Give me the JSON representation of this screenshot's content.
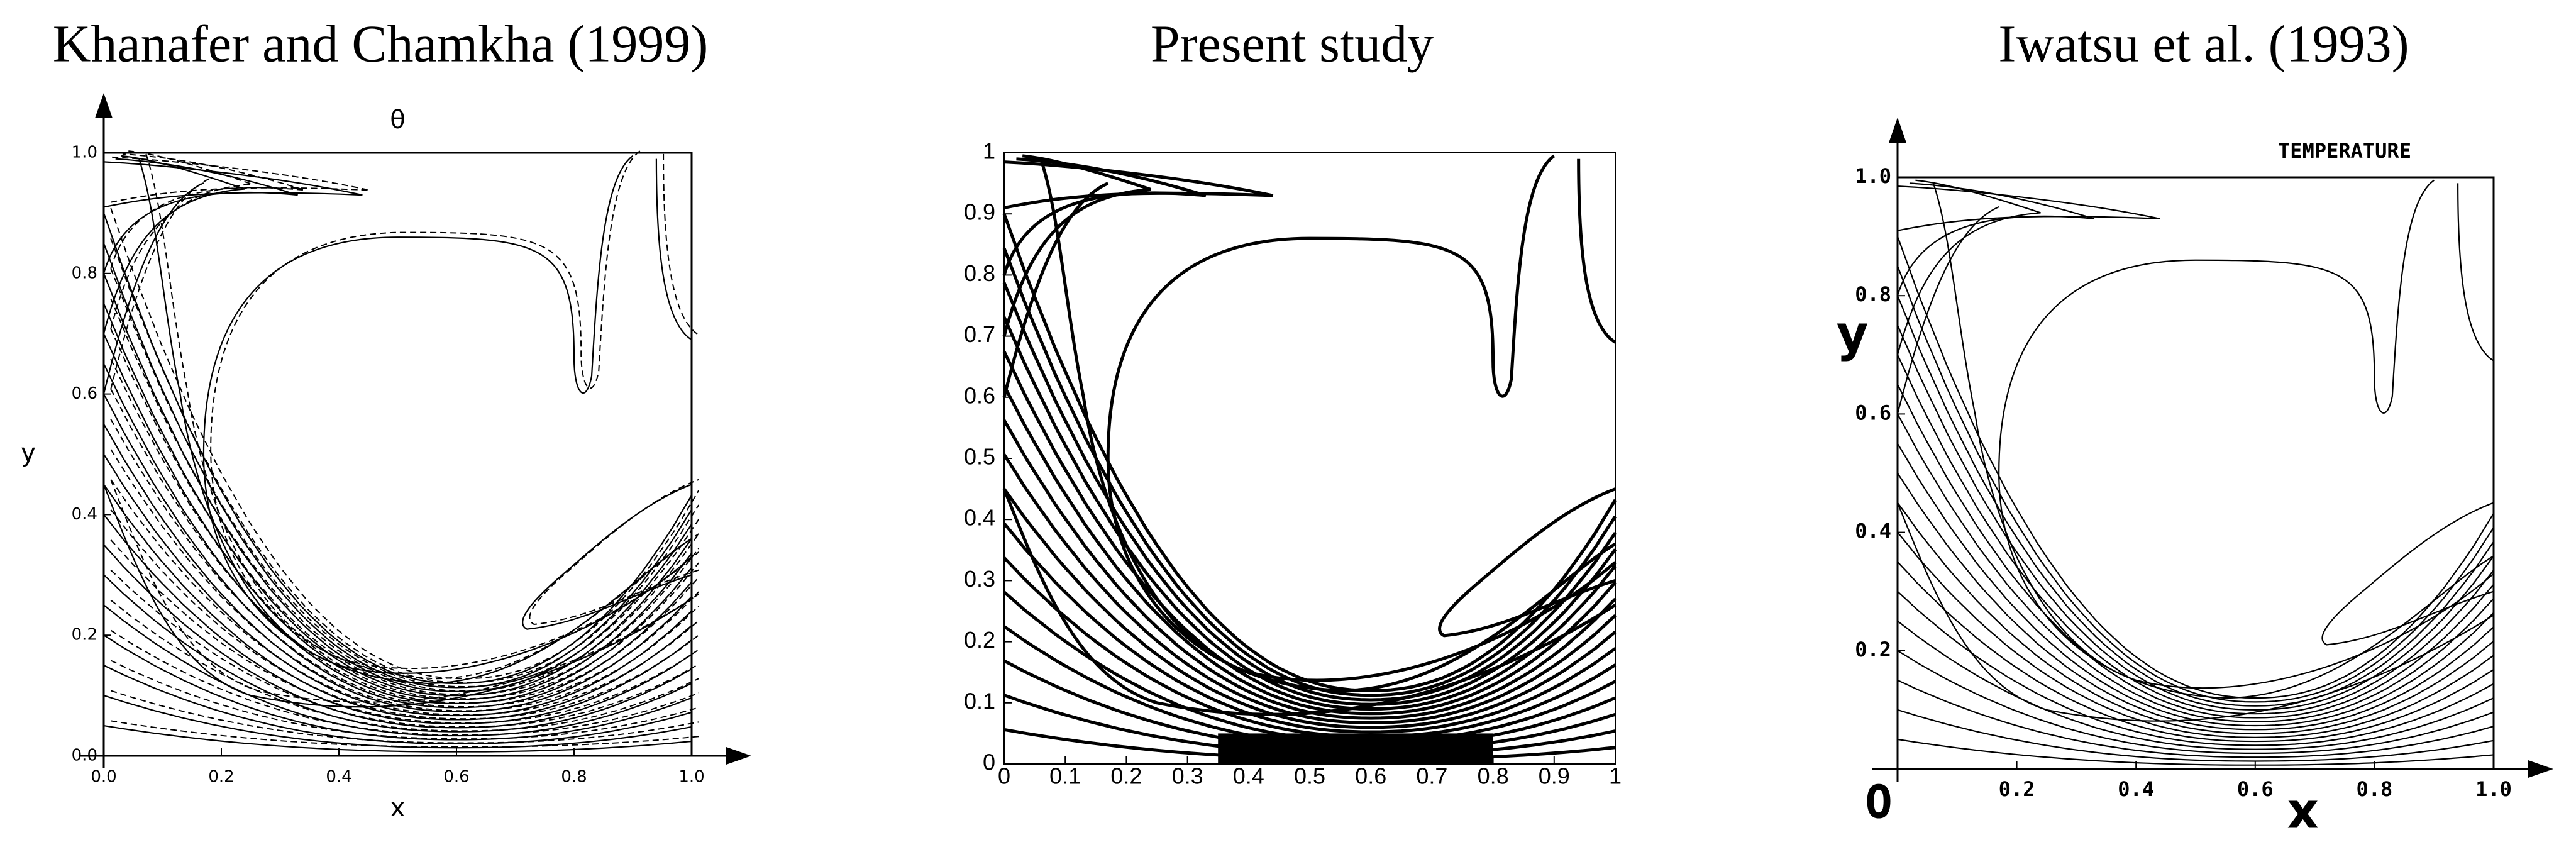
{
  "chart_data": [
    {
      "type": "contour",
      "title": "Khanafer and Chamkha (1999)",
      "subtitle": "θ",
      "x_label": "x",
      "y_label": "y",
      "xlim": [
        0,
        1
      ],
      "ylim": [
        0,
        1
      ],
      "xticks": [
        {
          "value": 0,
          "label": "0.0"
        },
        0.2,
        0.4,
        0.6,
        0.8,
        {
          "value": 1,
          "label": "1.0"
        }
      ],
      "yticks": [
        {
          "value": 0,
          "label": "0.0"
        },
        0.2,
        0.4,
        0.6,
        0.8,
        {
          "value": 1,
          "label": "1.0"
        }
      ]
    },
    {
      "type": "contour",
      "title": "Present study",
      "xlim": [
        0,
        1
      ],
      "ylim": [
        0,
        1
      ],
      "xticks": [
        0,
        0.1,
        0.2,
        0.3,
        0.4,
        0.5,
        0.6,
        0.7,
        0.8,
        0.9,
        1
      ],
      "yticks": [
        0,
        0.1,
        0.2,
        0.3,
        0.4,
        0.5,
        0.6,
        0.7,
        0.8,
        0.9,
        1
      ]
    },
    {
      "type": "contour",
      "title": "Iwatsu et al. (1993)",
      "annotation": "TEMPERATURE",
      "x_label": "x",
      "y_label": "y",
      "xlim": [
        0,
        1
      ],
      "ylim": [
        0,
        1
      ],
      "xticks": [
        {
          "value": 0,
          "label": "O"
        },
        0.2,
        0.4,
        0.6,
        0.8,
        {
          "value": 1,
          "label": "1.0"
        }
      ],
      "yticks": [
        0.2,
        0.4,
        0.6,
        0.8,
        {
          "value": 1,
          "label": "1.0"
        }
      ]
    }
  ]
}
